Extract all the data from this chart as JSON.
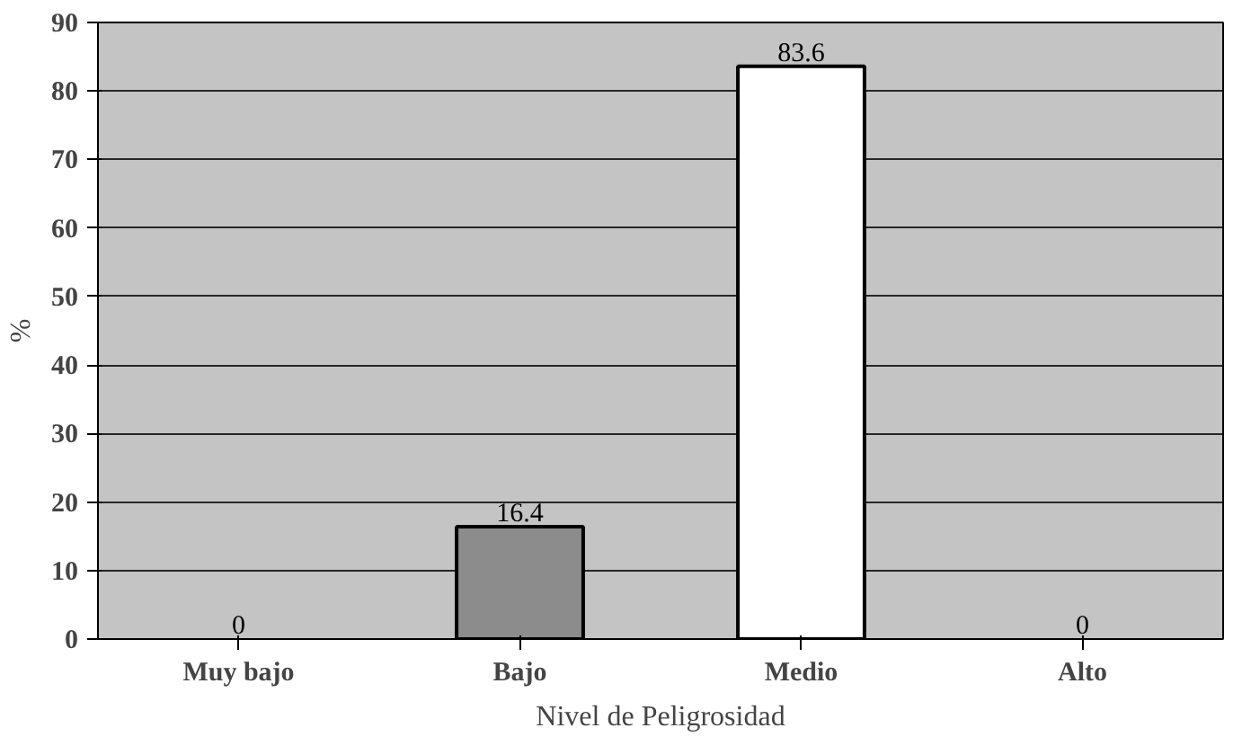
{
  "chart_data": {
    "type": "bar",
    "xlabel": "Nivel de Peligrosidad",
    "ylabel": "%",
    "categories": [
      "Muy bajo",
      "Bajo",
      "Medio",
      "Alto"
    ],
    "values": [
      0,
      16.4,
      83.6,
      0
    ],
    "colors": [
      null,
      "#8c8c8c",
      "#ffffff",
      null
    ],
    "ylim": [
      0,
      90
    ],
    "yticks": [
      0,
      10,
      20,
      30,
      40,
      50,
      60,
      70,
      80,
      90
    ],
    "grid": "y",
    "data_labels": true
  }
}
